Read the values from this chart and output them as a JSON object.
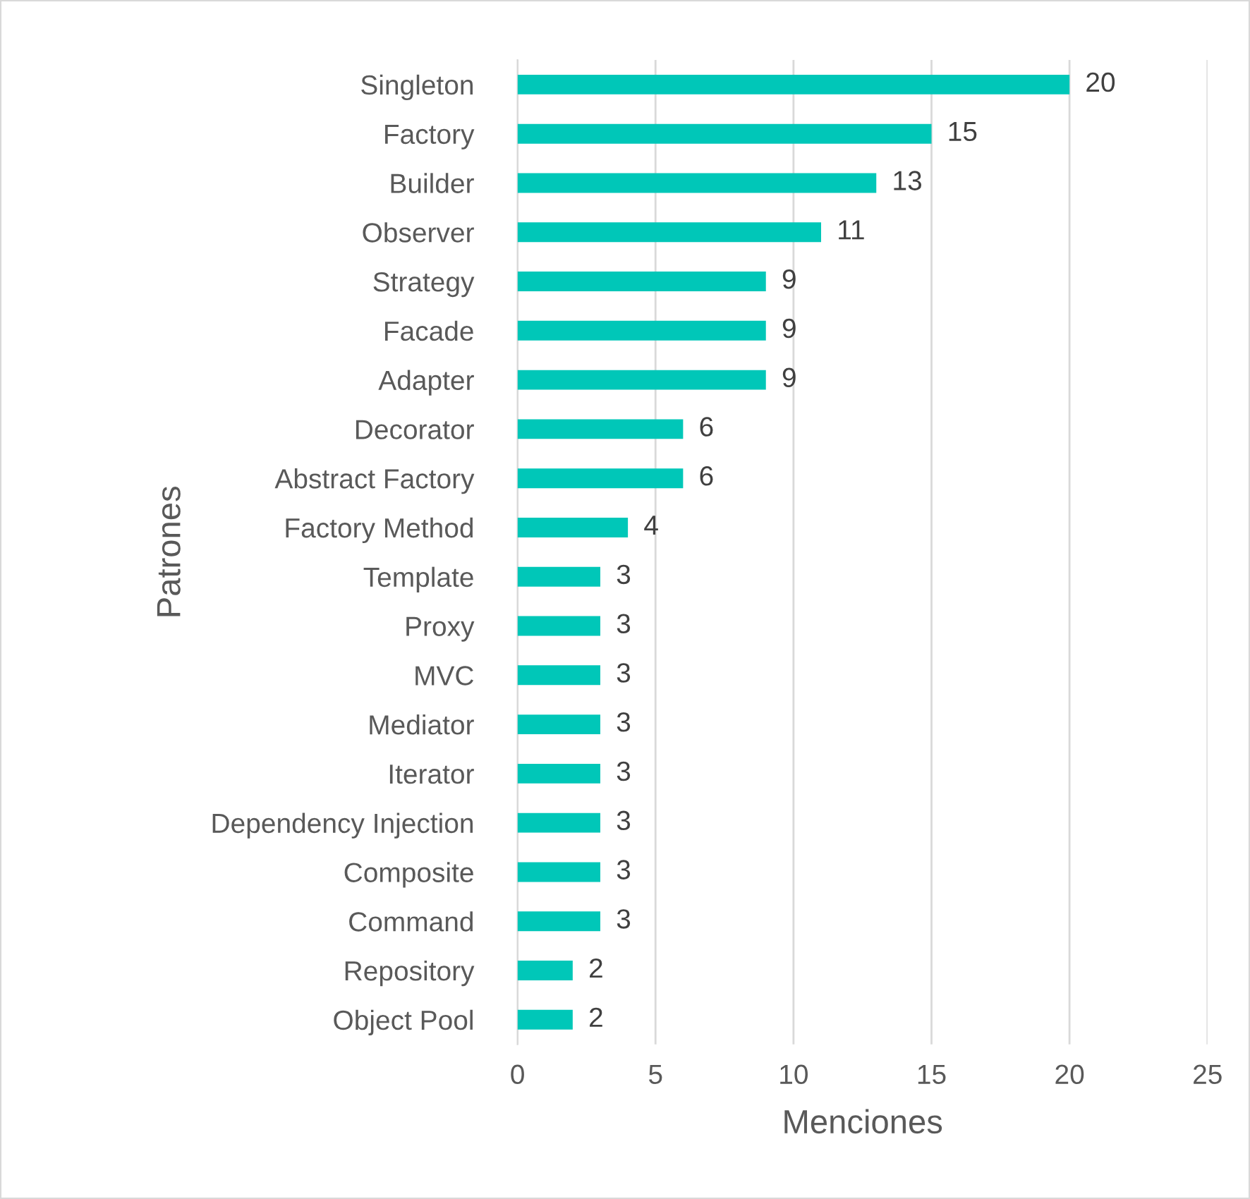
{
  "chart_data": {
    "type": "bar",
    "orientation": "horizontal",
    "xlabel": "Menciones",
    "ylabel": "Patrones",
    "categories": [
      "Singleton",
      "Factory",
      "Builder",
      "Observer",
      "Strategy",
      "Facade",
      "Adapter",
      "Decorator",
      "Abstract Factory",
      "Factory Method",
      "Template",
      "Proxy",
      "MVC",
      "Mediator",
      "Iterator",
      "Dependency Injection",
      "Composite",
      "Command",
      "Repository",
      "Object Pool"
    ],
    "values": [
      20,
      15,
      13,
      11,
      9,
      9,
      9,
      6,
      6,
      4,
      3,
      3,
      3,
      3,
      3,
      3,
      3,
      3,
      2,
      2
    ],
    "color": "#00c7b8",
    "xlim": [
      0,
      25
    ],
    "xticks": [
      0,
      5,
      10,
      15,
      20,
      25
    ],
    "grid": "x",
    "data_labels": true,
    "legend": false
  }
}
